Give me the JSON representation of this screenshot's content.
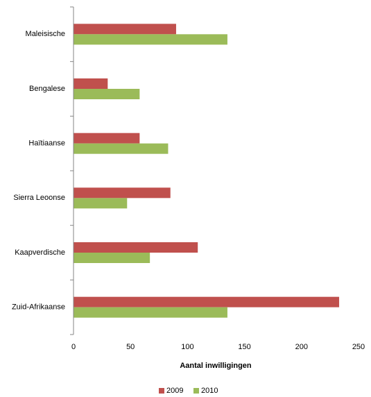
{
  "chart_data": {
    "type": "bar",
    "orientation": "horizontal",
    "x_label": "Aantal inwilligingen",
    "categories": [
      "Maleisische",
      "Bengalese",
      "Haïtiaanse",
      "Sierra Leoonse",
      "Kaapverdische",
      "Zuid-Afrikaanse"
    ],
    "series": [
      {
        "name": "2009",
        "color": "#c0504d",
        "values": [
          90,
          30,
          58,
          85,
          109,
          233
        ]
      },
      {
        "name": "2010",
        "color": "#9bbb59",
        "values": [
          135,
          58,
          83,
          47,
          67,
          135
        ]
      }
    ],
    "xlim": [
      0,
      250
    ],
    "xticks": [
      0,
      50,
      100,
      150,
      200,
      250
    ],
    "legend": "bottom"
  }
}
